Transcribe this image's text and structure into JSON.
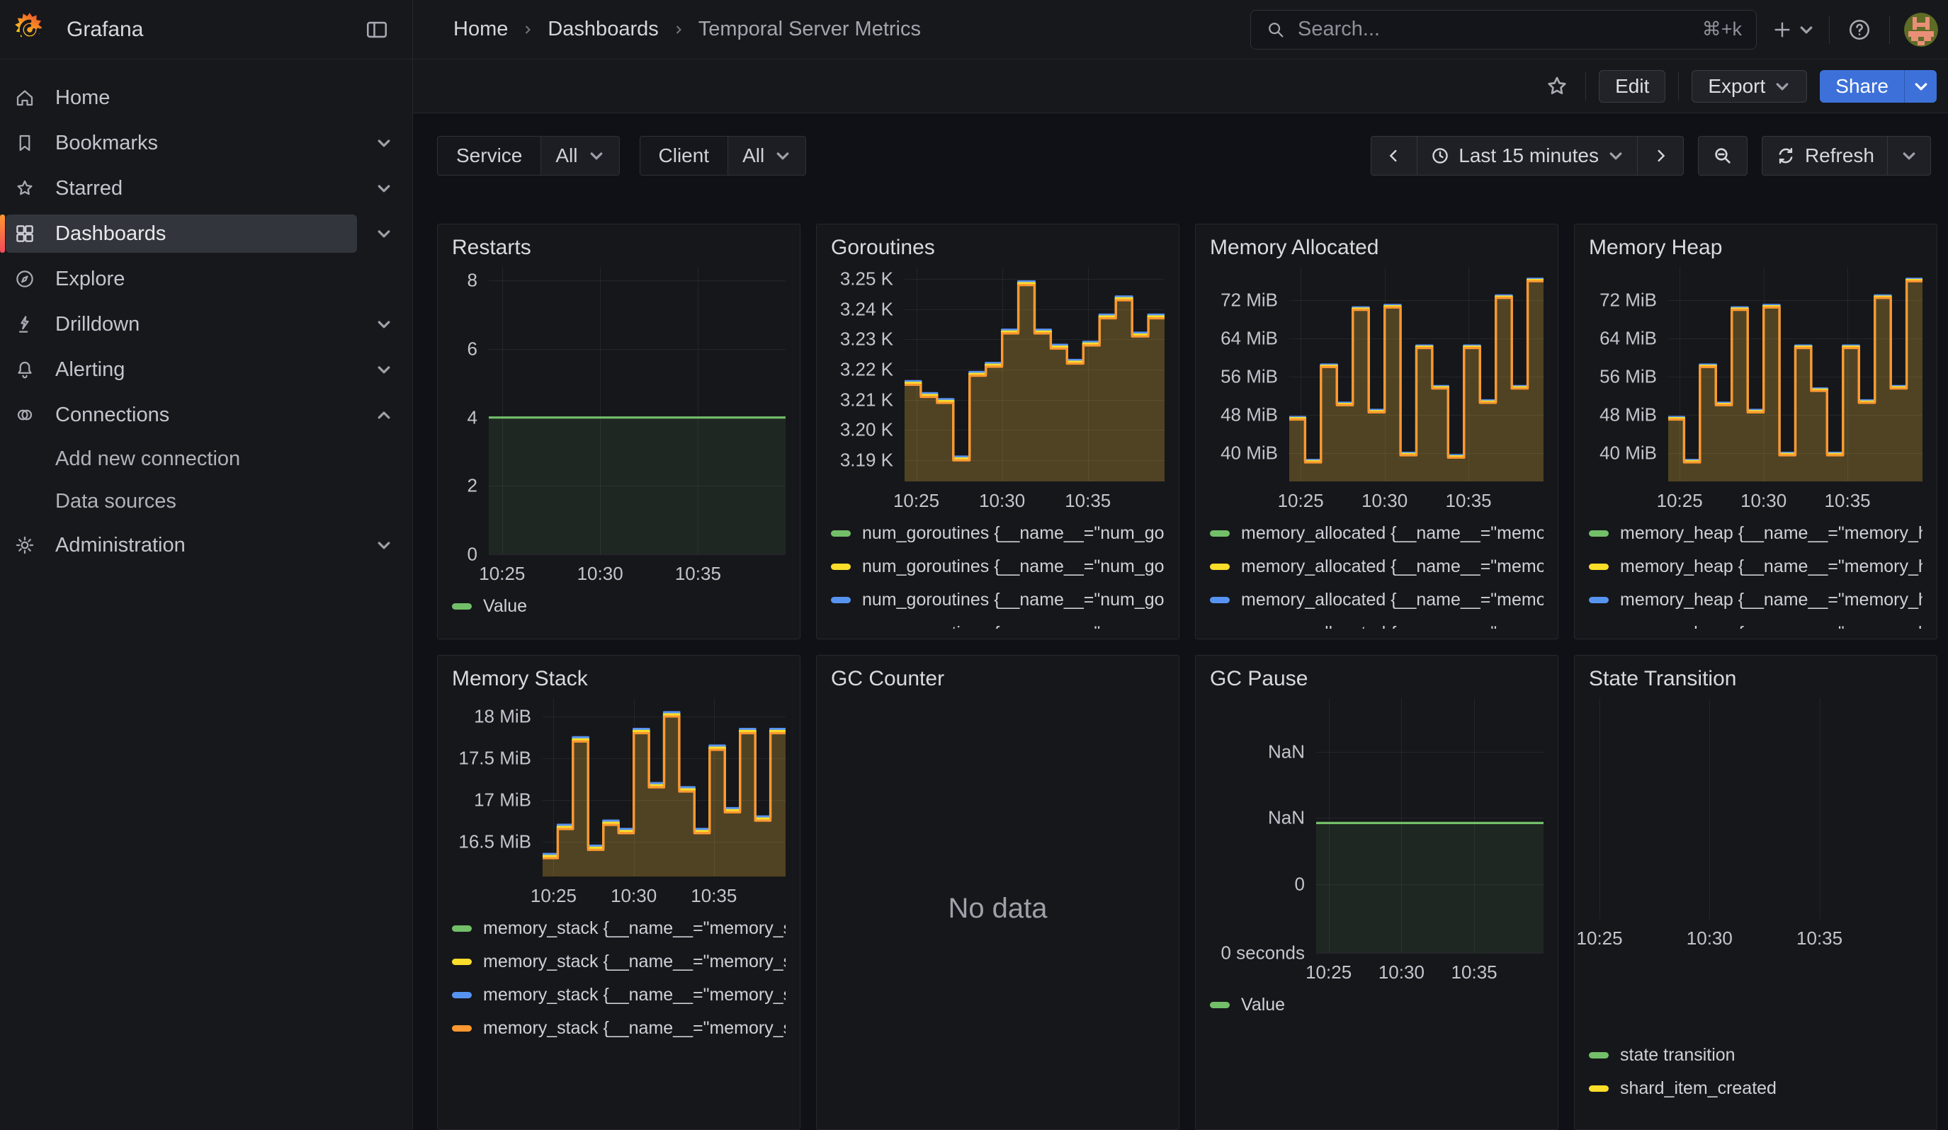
{
  "header": {
    "brand": "Grafana",
    "breadcrumb": {
      "items": [
        "Home",
        "Dashboards",
        "Temporal Server Metrics"
      ]
    },
    "search": {
      "placeholder": "Search...",
      "shortcut": "⌘+k"
    }
  },
  "toolbar": {
    "edit": "Edit",
    "export": "Export",
    "share": "Share"
  },
  "sidebar": {
    "items": [
      {
        "label": "Home"
      },
      {
        "label": "Bookmarks"
      },
      {
        "label": "Starred"
      },
      {
        "label": "Dashboards",
        "active": true
      },
      {
        "label": "Explore"
      },
      {
        "label": "Drilldown"
      },
      {
        "label": "Alerting"
      },
      {
        "label": "Connections"
      },
      {
        "label": "Add new connection"
      },
      {
        "label": "Data sources"
      },
      {
        "label": "Administration"
      }
    ]
  },
  "controls": {
    "filters": [
      {
        "label": "Service",
        "value": "All"
      },
      {
        "label": "Client",
        "value": "All"
      }
    ],
    "time_range": "Last 15 minutes",
    "refresh": "Refresh"
  },
  "colors": {
    "green": "#73BF69",
    "yellow": "#FADE2A",
    "blue": "#5794F2",
    "orange": "#FF9830",
    "accent_blue": "#3D71D9"
  },
  "chart_data": [
    {
      "key": "restarts",
      "type": "area",
      "title": "Restarts",
      "ylim": [
        0,
        8.4
      ],
      "y_ticks": [
        {
          "label": "8",
          "v": 8
        },
        {
          "label": "6",
          "v": 6
        },
        {
          "label": "4",
          "v": 4
        },
        {
          "label": "2",
          "v": 2
        },
        {
          "label": "0",
          "v": 0
        }
      ],
      "x_ticks": [
        {
          "label": "10:25",
          "f": 0.045
        },
        {
          "label": "10:30",
          "f": 0.375
        },
        {
          "label": "10:35",
          "f": 0.705
        }
      ],
      "base": [
        4,
        4
      ],
      "series": [
        {
          "color": "#73BF69",
          "offset": 0,
          "fill": "rgba(115,191,105,0.10)"
        }
      ],
      "legend": [
        {
          "label": "Value",
          "color": "#73BF69"
        }
      ]
    },
    {
      "key": "goroutines",
      "type": "area",
      "title": "Goroutines",
      "ylim": [
        3183,
        3254
      ],
      "y_ticks": [
        {
          "label": "3.25 K",
          "v": 3250
        },
        {
          "label": "3.24 K",
          "v": 3240
        },
        {
          "label": "3.23 K",
          "v": 3230
        },
        {
          "label": "3.22 K",
          "v": 3220
        },
        {
          "label": "3.21 K",
          "v": 3210
        },
        {
          "label": "3.20 K",
          "v": 3200
        },
        {
          "label": "3.19 K",
          "v": 3190
        }
      ],
      "x_ticks": [
        {
          "label": "10:25",
          "f": 0.045
        },
        {
          "label": "10:30",
          "f": 0.375
        },
        {
          "label": "10:35",
          "f": 0.705
        }
      ],
      "base": [
        3215,
        3211,
        3209,
        3190,
        3218,
        3221,
        3232,
        3248,
        3232,
        3227,
        3222,
        3228,
        3237,
        3243,
        3231,
        3237
      ],
      "series": [
        {
          "color": "#5794F2",
          "offset": 1.2,
          "fill": "none"
        },
        {
          "color": "#FADE2A",
          "offset": 0.6,
          "fill": "none"
        },
        {
          "color": "#FF9830",
          "offset": 0,
          "fill": "rgba(235,190,60,0.27)"
        }
      ],
      "legend": [
        {
          "label": "num_goroutines {__name__=\"num_goroutines",
          "color": "#73BF69"
        },
        {
          "label": "num_goroutines {__name__=\"num_goroutines",
          "color": "#FADE2A"
        },
        {
          "label": "num_goroutines {__name__=\"num_goroutines",
          "color": "#5794F2"
        },
        {
          "label": "num_goroutines {__name__=\"num_goroutines",
          "color": "#FF9830"
        }
      ]
    },
    {
      "key": "memory_allocated",
      "type": "area",
      "title": "Memory Allocated",
      "ylim": [
        34,
        79
      ],
      "y_ticks": [
        {
          "label": "72 MiB",
          "v": 72
        },
        {
          "label": "64 MiB",
          "v": 64
        },
        {
          "label": "56 MiB",
          "v": 56
        },
        {
          "label": "48 MiB",
          "v": 48
        },
        {
          "label": "40 MiB",
          "v": 40
        }
      ],
      "x_ticks": [
        {
          "label": "10:25",
          "f": 0.045
        },
        {
          "label": "10:30",
          "f": 0.375
        },
        {
          "label": "10:35",
          "f": 0.705
        }
      ],
      "base": [
        47,
        38,
        58,
        50,
        70,
        48.5,
        70.5,
        39.5,
        62,
        53.5,
        39,
        62,
        50.5,
        72.5,
        53.5,
        76
      ],
      "series": [
        {
          "color": "#5794F2",
          "offset": 0.5,
          "fill": "none"
        },
        {
          "color": "#FADE2A",
          "offset": 0.25,
          "fill": "none"
        },
        {
          "color": "#FF9830",
          "offset": 0,
          "fill": "rgba(235,190,60,0.27)"
        }
      ],
      "legend": [
        {
          "label": "memory_allocated {__name__=\"memory_allocated",
          "color": "#73BF69"
        },
        {
          "label": "memory_allocated {__name__=\"memory_allocated",
          "color": "#FADE2A"
        },
        {
          "label": "memory_allocated {__name__=\"memory_allocated",
          "color": "#5794F2"
        },
        {
          "label": "memory_allocated {__name__=\"memory_allocated",
          "color": "#FF9830"
        }
      ]
    },
    {
      "key": "memory_heap",
      "type": "area",
      "title": "Memory Heap",
      "ylim": [
        34,
        79
      ],
      "y_ticks": [
        {
          "label": "72 MiB",
          "v": 72
        },
        {
          "label": "64 MiB",
          "v": 64
        },
        {
          "label": "56 MiB",
          "v": 56
        },
        {
          "label": "48 MiB",
          "v": 48
        },
        {
          "label": "40 MiB",
          "v": 40
        }
      ],
      "x_ticks": [
        {
          "label": "10:25",
          "f": 0.045
        },
        {
          "label": "10:30",
          "f": 0.375
        },
        {
          "label": "10:35",
          "f": 0.705
        }
      ],
      "base": [
        47,
        38,
        58,
        50,
        70,
        48.5,
        70.5,
        39.5,
        62,
        53,
        39.5,
        62,
        50.5,
        72.5,
        53.5,
        76
      ],
      "series": [
        {
          "color": "#5794F2",
          "offset": 0.5,
          "fill": "none"
        },
        {
          "color": "#FADE2A",
          "offset": 0.25,
          "fill": "none"
        },
        {
          "color": "#FF9830",
          "offset": 0,
          "fill": "rgba(235,190,60,0.27)"
        }
      ],
      "legend": [
        {
          "label": "memory_heap {__name__=\"memory_heap",
          "color": "#73BF69"
        },
        {
          "label": "memory_heap {__name__=\"memory_heap",
          "color": "#FADE2A"
        },
        {
          "label": "memory_heap {__name__=\"memory_heap",
          "color": "#5794F2"
        },
        {
          "label": "memory_heap {__name__=\"memory_heap",
          "color": "#FF9830"
        }
      ]
    },
    {
      "key": "memory_stack",
      "type": "area",
      "title": "Memory Stack",
      "ylim": [
        16.08,
        18.22
      ],
      "y_ticks": [
        {
          "label": "18 MiB",
          "v": 18
        },
        {
          "label": "17.5 MiB",
          "v": 17.5
        },
        {
          "label": "17 MiB",
          "v": 17
        },
        {
          "label": "16.5 MiB",
          "v": 16.5
        }
      ],
      "x_ticks": [
        {
          "label": "10:25",
          "f": 0.045
        },
        {
          "label": "10:30",
          "f": 0.375
        },
        {
          "label": "10:35",
          "f": 0.705
        }
      ],
      "base": [
        16.3,
        16.65,
        17.7,
        16.4,
        16.7,
        16.6,
        17.8,
        17.15,
        18.0,
        17.1,
        16.6,
        17.6,
        16.85,
        17.8,
        16.75,
        17.8
      ],
      "series": [
        {
          "color": "#5794F2",
          "offset": 0.05,
          "fill": "none"
        },
        {
          "color": "#FADE2A",
          "offset": 0.025,
          "fill": "none"
        },
        {
          "color": "#FF9830",
          "offset": 0,
          "fill": "rgba(235,190,60,0.27)"
        }
      ],
      "legend": [
        {
          "label": "memory_stack {__name__=\"memory_stack",
          "color": "#73BF69"
        },
        {
          "label": "memory_stack {__name__=\"memory_stack",
          "color": "#FADE2A"
        },
        {
          "label": "memory_stack {__name__=\"memory_stack",
          "color": "#5794F2"
        },
        {
          "label": "memory_stack {__name__=\"memory_stack",
          "color": "#FF9830"
        }
      ]
    },
    {
      "key": "gc_counter",
      "type": "nodata",
      "title": "GC Counter",
      "message": "No data"
    },
    {
      "key": "gc_pause",
      "type": "area",
      "title": "GC Pause",
      "ylim": [
        0,
        100
      ],
      "y_ticks": [
        {
          "label": "NaN",
          "v": 79
        },
        {
          "label": "NaN",
          "v": 53
        },
        {
          "label": "0",
          "v": 27
        },
        {
          "label": "0 seconds",
          "v": 0
        }
      ],
      "x_ticks": [
        {
          "label": "10:25",
          "f": 0.055
        },
        {
          "label": "10:30",
          "f": 0.375
        },
        {
          "label": "10:35",
          "f": 0.695
        }
      ],
      "base": [
        51,
        51
      ],
      "series": [
        {
          "color": "#73BF69",
          "offset": 0,
          "fill": "rgba(115,191,105,0.10)"
        }
      ],
      "legend": [
        {
          "label": "Value",
          "color": "#73BF69"
        }
      ]
    },
    {
      "key": "state_transition",
      "type": "empty",
      "title": "State Transition",
      "ylim": [
        0,
        1
      ],
      "y_ticks": [],
      "x_ticks": [
        {
          "label": "10:25",
          "f": 0.065
        },
        {
          "label": "10:30",
          "f": 0.37
        },
        {
          "label": "10:35",
          "f": 0.675
        }
      ],
      "base": [],
      "series": [],
      "legend": [
        {
          "label": "state transition",
          "color": "#73BF69"
        },
        {
          "label": "shard_item_created",
          "color": "#FADE2A"
        }
      ]
    }
  ]
}
